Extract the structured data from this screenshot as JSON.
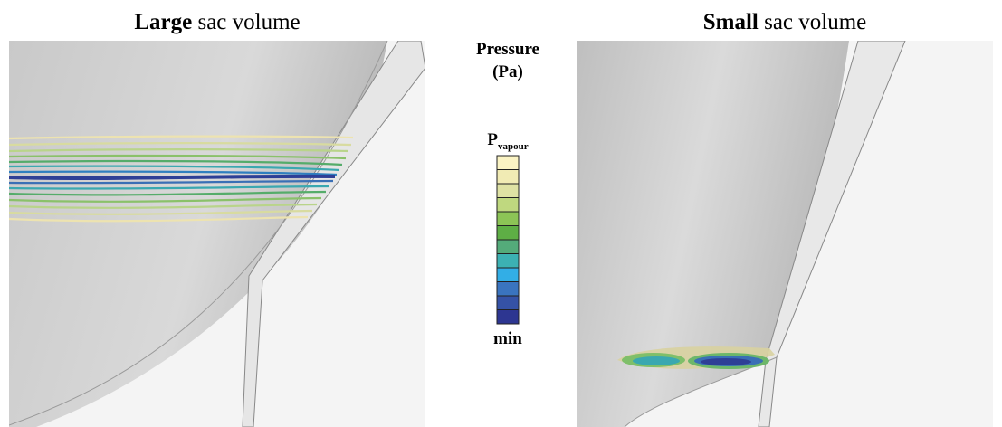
{
  "panels": [
    {
      "title_bold": "Large",
      "title_rest": " sac volume"
    },
    {
      "title_bold": "Small",
      "title_rest": " sac volume"
    }
  ],
  "colorbar": {
    "title": "Pressure",
    "unit": "(Pa)",
    "max_label": {
      "main": "P",
      "sub": "vapour"
    },
    "min_label": "min"
  }
}
